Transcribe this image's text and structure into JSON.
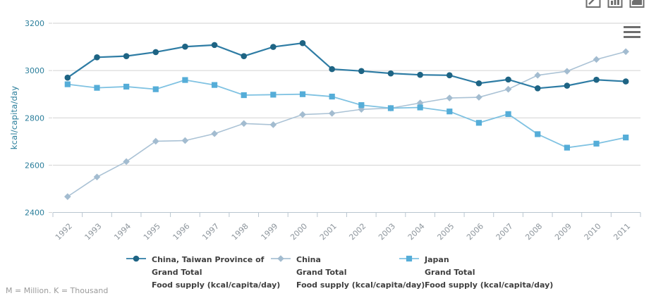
{
  "toolbar": {
    "chart_type_icons": [
      "line-chart-icon",
      "bar-chart-icon",
      "area-chart-icon"
    ],
    "menu_icon": "hamburger-menu"
  },
  "colors": {
    "axis_text": "#2a7e9b",
    "x_label": "#8d959c",
    "grid": "#d2d2d2",
    "axis_line": "#b9c6d0",
    "icon": "#6e6e6e",
    "legend_text": "#3f3f3f"
  },
  "chart_data": {
    "type": "line",
    "title": "",
    "xlabel": "",
    "ylabel": "kcal/capita/day",
    "ylim": [
      2400,
      3200
    ],
    "yticks": [
      2400,
      2600,
      2800,
      3000,
      3200
    ],
    "grid": true,
    "legend_position": "bottom",
    "x": [
      1992,
      1993,
      1994,
      1995,
      1996,
      1997,
      1998,
      1999,
      2000,
      2001,
      2002,
      2003,
      2004,
      2005,
      2006,
      2007,
      2008,
      2009,
      2010,
      2011
    ],
    "series": [
      {
        "name": "China, Taiwan Province of",
        "subtitle": "Grand Total",
        "measure": "Food supply (kcal/capita/day)",
        "marker": "circle",
        "color": "#1e6484",
        "line_color": "#2e7ca4",
        "line_width": 2.2,
        "values": [
          2970,
          3056,
          3061,
          3078,
          3101,
          3108,
          3061,
          3100,
          3116,
          3006,
          2998,
          2988,
          2982,
          2980,
          2946,
          2962,
          2925,
          2936,
          2961,
          2954
        ]
      },
      {
        "name": "China",
        "subtitle": "Grand Total",
        "measure": "Food supply (kcal/capita/day)",
        "marker": "diamond",
        "color": "#a3bcd0",
        "line_color": "#aac2d5",
        "line_width": 1.6,
        "values": [
          2467,
          2550,
          2615,
          2701,
          2704,
          2733,
          2776,
          2771,
          2814,
          2819,
          2836,
          2841,
          2863,
          2884,
          2887,
          2921,
          2980,
          2997,
          3047,
          3080
        ]
      },
      {
        "name": "Japan",
        "subtitle": "Grand Total",
        "measure": "Food supply (kcal/capita/day)",
        "marker": "square",
        "color": "#55add8",
        "line_color": "#7fc2e2",
        "line_width": 1.8,
        "values": [
          2942,
          2927,
          2932,
          2921,
          2960,
          2939,
          2896,
          2898,
          2900,
          2890,
          2854,
          2841,
          2844,
          2827,
          2779,
          2816,
          2731,
          2674,
          2691,
          2717
        ]
      }
    ]
  },
  "footer": {
    "note": "M = Million. K = Thousand"
  }
}
